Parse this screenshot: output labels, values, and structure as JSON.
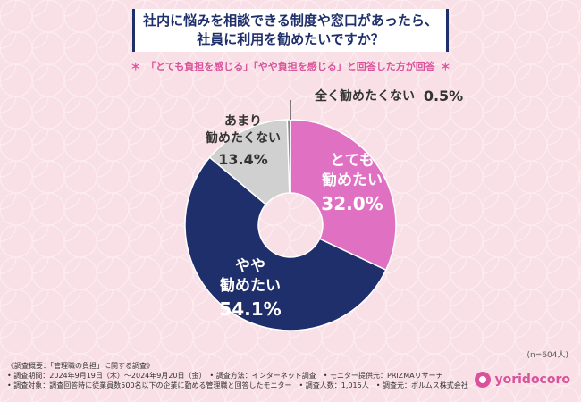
{
  "title": {
    "line1": "社内に悩みを相談できる制度や窓口があったら、",
    "line2": "社員に利用を勧めたいですか？"
  },
  "subtitle": {
    "star": "＊",
    "text": "「とても負担を感じる」「やや負担を感じる」と回答した方が回答"
  },
  "n_label": "(n=604人)",
  "footer": {
    "row1": "《調査概要：「管理職の負担」に関する調査》",
    "row2": "• 調査期間：2024年9月19日（木）～2024年9月20日（金）　• 調査方法：インターネット調査　• モニター提供元：PRIZMAリサーチ",
    "row3": "• 調査対象：調査回答時に従業員数500名以下の企業に勤める管理職と回答したモニター　• 調査人数：1,015人　• 調査元：ボルムス株式会社"
  },
  "logo": {
    "text": "yoridocoro"
  },
  "colors": {
    "background": "#f9dfe6",
    "navy": "#1f2f6b",
    "pink": "#d9539a"
  },
  "chart_data": {
    "type": "pie",
    "donut": true,
    "slices": [
      {
        "label_lines": [
          "とても",
          "勧めたい"
        ],
        "value": 32.0,
        "value_text": "32.0%",
        "color": "#e071c2",
        "text_color": "#ffffff"
      },
      {
        "label_lines": [
          "やや",
          "勧めたい"
        ],
        "value": 54.1,
        "value_text": "54.1%",
        "color": "#1f2f6b",
        "text_color": "#ffffff"
      },
      {
        "label_lines": [
          "あまり",
          "勧めたくない"
        ],
        "value": 13.4,
        "value_text": "13.4%",
        "color": "#d0d0d0",
        "text_color": "#333333"
      },
      {
        "label_lines": [
          "全く勧めたくない"
        ],
        "value": 0.5,
        "value_text": "0.5%",
        "color": "#888888",
        "text_color": "#333333"
      }
    ]
  }
}
